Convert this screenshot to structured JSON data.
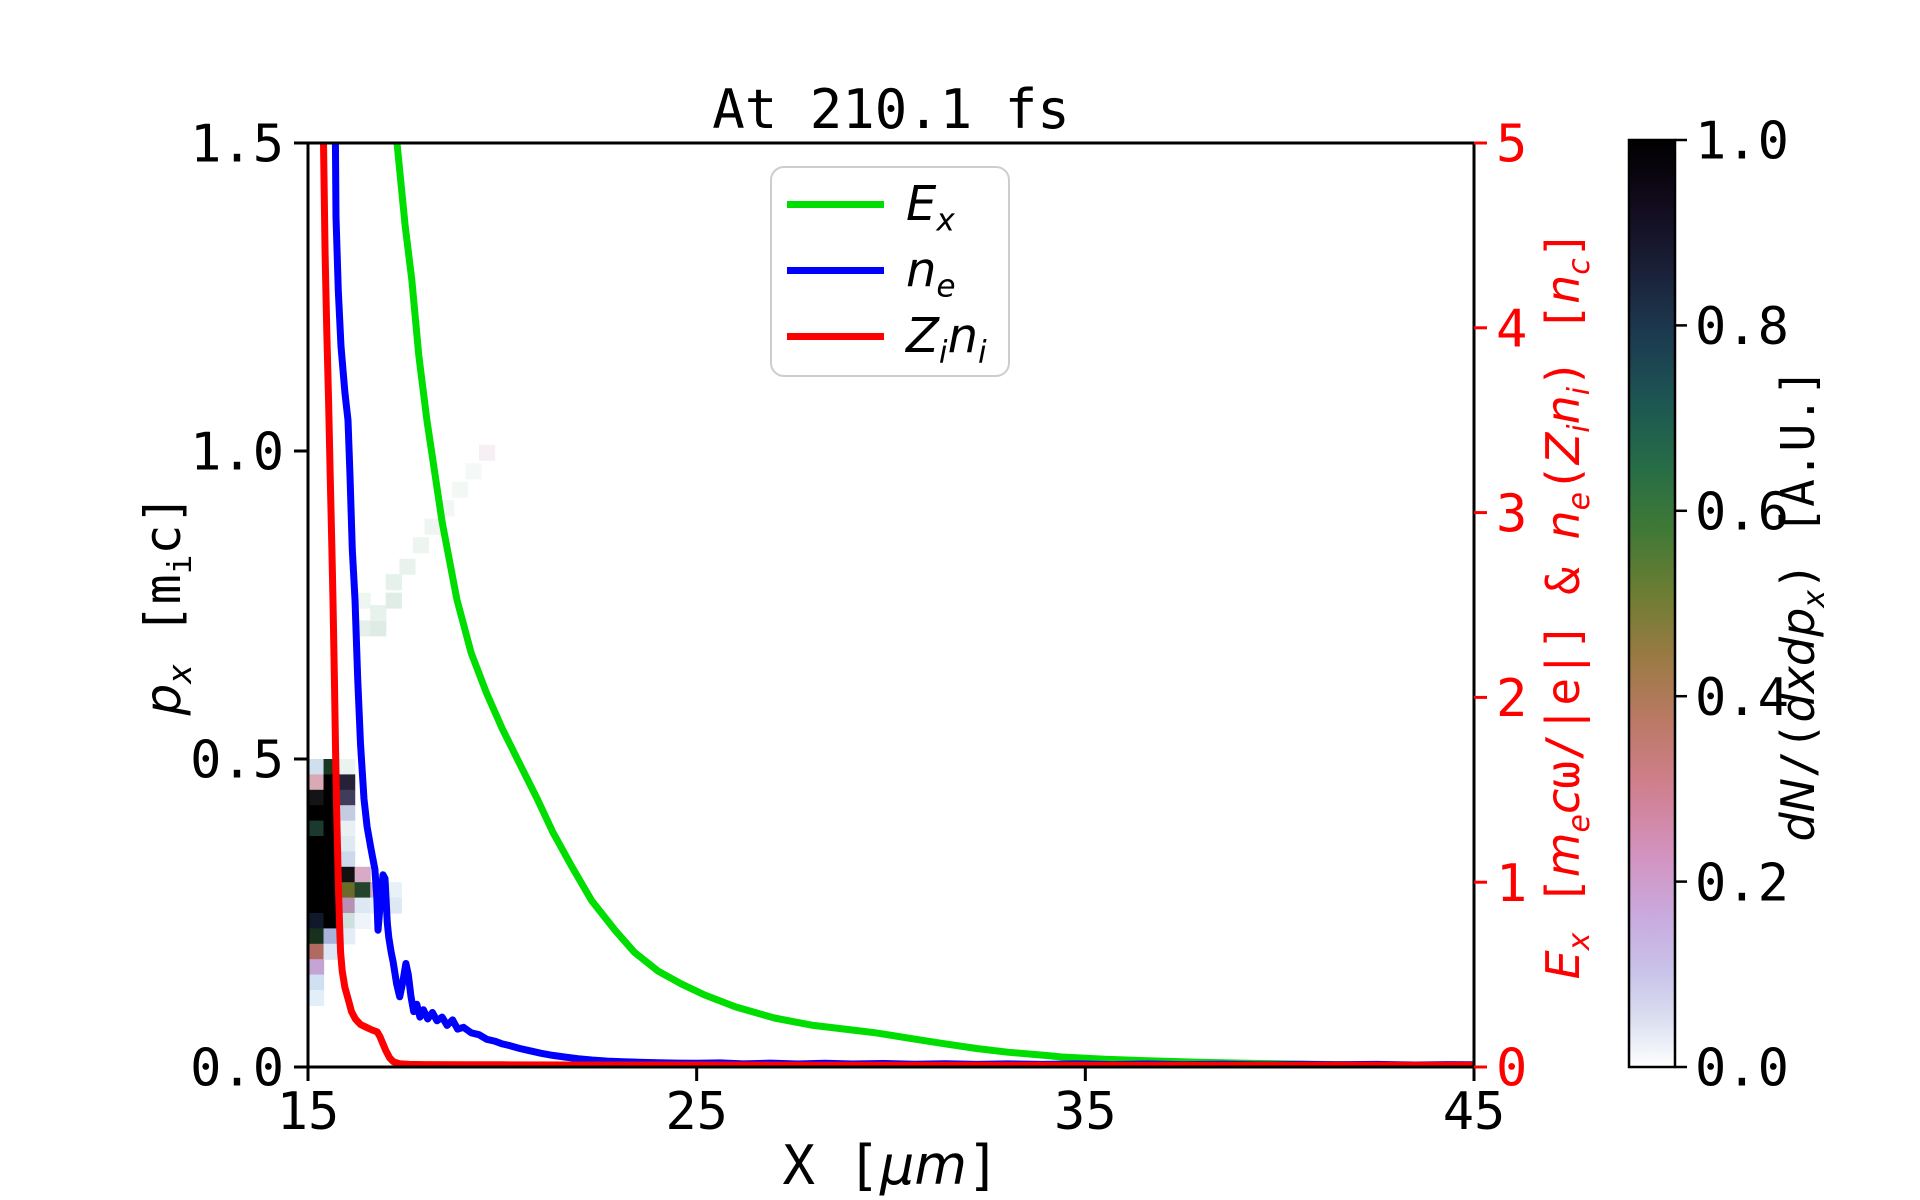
{
  "figure": {
    "background": "#ffffff"
  },
  "chart_data": {
    "type": "line",
    "title": "At 210.1 fs",
    "axes": {
      "x": {
        "label_html": "X [<i>μm</i>]",
        "range": [
          15,
          45
        ],
        "tick_values": [
          15,
          25,
          35,
          45
        ],
        "tick_labels": [
          "15",
          "25",
          "35",
          "45"
        ],
        "color": "#000000"
      },
      "y_left": {
        "label_html": "<i>p<sub>x</sub></i> [m<sub>i</sub>c]",
        "range": [
          0,
          1.5
        ],
        "tick_values": [
          0,
          0.5,
          1.0,
          1.5
        ],
        "tick_labels": [
          "0.0",
          "0.5",
          "1.0",
          "1.5"
        ],
        "color": "#000000"
      },
      "y_right": {
        "label_html": "<i>E<sub>x</sub></i> [<i>m<sub>e</sub>c</i>ω/|e|] &amp; <i>n<sub>e</sub></i>(<i>Z<sub>i</sub>n<sub>i</sub></i>) [<i>n<sub>c</sub></i>]",
        "range": [
          0,
          5
        ],
        "tick_values": [
          0,
          1,
          2,
          3,
          4,
          5
        ],
        "tick_labels": [
          "0",
          "1",
          "2",
          "3",
          "4",
          "5"
        ],
        "color": "#ff0000"
      }
    },
    "legend": {
      "entries": [
        {
          "name": "Ex",
          "label_html": "<i>E<sub>x</sub></i>",
          "color": "#00dd00"
        },
        {
          "name": "ne",
          "label_html": "<i>n<sub>e</sub></i>",
          "color": "#0000ff"
        },
        {
          "name": "Zini",
          "label_html": "<i>Z<sub>i</sub>n<sub>i</sub></i>",
          "color": "#ff0000"
        }
      ]
    },
    "series": [
      {
        "name": "Ex",
        "axis": "right",
        "color": "#00dd00",
        "width": 7,
        "points": [
          [
            16.9,
            6.2
          ],
          [
            17.29,
            5.0
          ],
          [
            17.5,
            4.55
          ],
          [
            17.67,
            4.26
          ],
          [
            17.85,
            3.85
          ],
          [
            18.06,
            3.5
          ],
          [
            18.45,
            2.95
          ],
          [
            18.83,
            2.53
          ],
          [
            19.2,
            2.24
          ],
          [
            19.6,
            2.02
          ],
          [
            20.0,
            1.83
          ],
          [
            20.4,
            1.66
          ],
          [
            20.9,
            1.45
          ],
          [
            21.3,
            1.27
          ],
          [
            21.8,
            1.08
          ],
          [
            22.3,
            0.9
          ],
          [
            22.9,
            0.74
          ],
          [
            23.4,
            0.62
          ],
          [
            24.0,
            0.52
          ],
          [
            24.6,
            0.45
          ],
          [
            25.2,
            0.39
          ],
          [
            26.0,
            0.325
          ],
          [
            27.0,
            0.265
          ],
          [
            28.0,
            0.225
          ],
          [
            29.0,
            0.2
          ],
          [
            29.6,
            0.185
          ],
          [
            30.5,
            0.155
          ],
          [
            31.3,
            0.128
          ],
          [
            32.2,
            0.1
          ],
          [
            33.0,
            0.08
          ],
          [
            34.0,
            0.062
          ],
          [
            34.4,
            0.054
          ],
          [
            35.5,
            0.042
          ],
          [
            36.7,
            0.033
          ],
          [
            38.0,
            0.025
          ],
          [
            39.5,
            0.019
          ],
          [
            41.0,
            0.014
          ],
          [
            42.5,
            0.011
          ],
          [
            44.0,
            0.009
          ],
          [
            45.0,
            0.008
          ]
        ]
      },
      {
        "name": "ne",
        "axis": "right",
        "color": "#0000ff",
        "width": 7,
        "points": [
          [
            15.66,
            6.2
          ],
          [
            15.72,
            4.6
          ],
          [
            15.78,
            4.2
          ],
          [
            15.85,
            3.9
          ],
          [
            15.95,
            3.65
          ],
          [
            16.03,
            3.5
          ],
          [
            16.08,
            3.2
          ],
          [
            16.14,
            2.8
          ],
          [
            16.21,
            2.53
          ],
          [
            16.28,
            2.1
          ],
          [
            16.35,
            1.75
          ],
          [
            16.44,
            1.45
          ],
          [
            16.52,
            1.3
          ],
          [
            16.62,
            1.18
          ],
          [
            16.72,
            1.07
          ],
          [
            16.77,
            0.92
          ],
          [
            16.8,
            0.74
          ],
          [
            16.85,
            0.86
          ],
          [
            16.93,
            1.04
          ],
          [
            16.98,
            1.02
          ],
          [
            17.04,
            0.78
          ],
          [
            17.08,
            0.7
          ],
          [
            17.14,
            0.62
          ],
          [
            17.19,
            0.57
          ],
          [
            17.28,
            0.45
          ],
          [
            17.36,
            0.38
          ],
          [
            17.44,
            0.46
          ],
          [
            17.52,
            0.56
          ],
          [
            17.58,
            0.5
          ],
          [
            17.65,
            0.38
          ],
          [
            17.72,
            0.3
          ],
          [
            17.8,
            0.34
          ],
          [
            17.88,
            0.27
          ],
          [
            17.97,
            0.31
          ],
          [
            18.08,
            0.26
          ],
          [
            18.2,
            0.295
          ],
          [
            18.32,
            0.25
          ],
          [
            18.45,
            0.27
          ],
          [
            18.58,
            0.225
          ],
          [
            18.72,
            0.255
          ],
          [
            18.85,
            0.205
          ],
          [
            19.0,
            0.215
          ],
          [
            19.2,
            0.185
          ],
          [
            19.4,
            0.175
          ],
          [
            19.6,
            0.15
          ],
          [
            19.8,
            0.14
          ],
          [
            20.0,
            0.125
          ],
          [
            20.2,
            0.115
          ],
          [
            20.45,
            0.1
          ],
          [
            20.7,
            0.088
          ],
          [
            21.0,
            0.074
          ],
          [
            21.3,
            0.063
          ],
          [
            21.6,
            0.054
          ],
          [
            21.95,
            0.045
          ],
          [
            22.3,
            0.038
          ],
          [
            22.7,
            0.032
          ],
          [
            23.1,
            0.028
          ],
          [
            23.5,
            0.026
          ],
          [
            24.0,
            0.023
          ],
          [
            24.5,
            0.021
          ],
          [
            25.0,
            0.02
          ],
          [
            25.6,
            0.022
          ],
          [
            26.2,
            0.017
          ],
          [
            26.9,
            0.021
          ],
          [
            27.6,
            0.016
          ],
          [
            28.3,
            0.02
          ],
          [
            29.0,
            0.016
          ],
          [
            29.8,
            0.019
          ],
          [
            30.6,
            0.015
          ],
          [
            31.4,
            0.018
          ],
          [
            32.2,
            0.014
          ],
          [
            33.0,
            0.017
          ],
          [
            33.9,
            0.014
          ],
          [
            34.8,
            0.017
          ],
          [
            35.7,
            0.013
          ],
          [
            36.6,
            0.016
          ],
          [
            37.5,
            0.013
          ],
          [
            38.5,
            0.015
          ],
          [
            39.5,
            0.012
          ],
          [
            40.5,
            0.014
          ],
          [
            41.5,
            0.012
          ],
          [
            42.5,
            0.014
          ],
          [
            43.5,
            0.011
          ],
          [
            44.3,
            0.013
          ],
          [
            45.0,
            0.012
          ]
        ]
      },
      {
        "name": "Zini",
        "axis": "right",
        "color": "#ff0000",
        "width": 7,
        "points": [
          [
            15.37,
            6.2
          ],
          [
            15.4,
            5.0
          ],
          [
            15.44,
            4.4
          ],
          [
            15.48,
            4.0
          ],
          [
            15.53,
            3.6
          ],
          [
            15.57,
            3.2
          ],
          [
            15.61,
            2.85
          ],
          [
            15.64,
            2.55
          ],
          [
            15.68,
            2.1
          ],
          [
            15.71,
            1.7
          ],
          [
            15.74,
            1.35
          ],
          [
            15.78,
            1.0
          ],
          [
            15.81,
            0.78
          ],
          [
            15.84,
            0.62
          ],
          [
            15.88,
            0.52
          ],
          [
            15.95,
            0.43
          ],
          [
            16.03,
            0.37
          ],
          [
            16.12,
            0.3
          ],
          [
            16.22,
            0.26
          ],
          [
            16.35,
            0.23
          ],
          [
            16.5,
            0.215
          ],
          [
            16.65,
            0.2
          ],
          [
            16.78,
            0.19
          ],
          [
            16.85,
            0.165
          ],
          [
            16.92,
            0.13
          ],
          [
            17.0,
            0.09
          ],
          [
            17.1,
            0.05
          ],
          [
            17.2,
            0.028
          ],
          [
            17.35,
            0.018
          ],
          [
            17.6,
            0.014
          ],
          [
            18.0,
            0.013
          ],
          [
            19.0,
            0.012
          ],
          [
            20.0,
            0.012
          ],
          [
            22.0,
            0.011
          ],
          [
            25.0,
            0.011
          ],
          [
            28.0,
            0.01
          ],
          [
            32.0,
            0.01
          ],
          [
            36.0,
            0.01
          ],
          [
            40.0,
            0.01
          ],
          [
            45.0,
            0.01
          ]
        ]
      }
    ],
    "heatmap": {
      "units": "x in μm (left edge), p in m_i c (bottom edge)",
      "cell_w": 0.4,
      "cell_h": 0.025,
      "cells": [
        [
          15.0,
          0.475,
          "#cfdfee"
        ],
        [
          15.0,
          0.45,
          "#d9aab6"
        ],
        [
          15.0,
          0.425,
          "#141418"
        ],
        [
          15.0,
          0.4,
          "#000000"
        ],
        [
          15.0,
          0.375,
          "#1b3a2e"
        ],
        [
          15.0,
          0.35,
          "#000000"
        ],
        [
          15.0,
          0.325,
          "#000000"
        ],
        [
          15.0,
          0.3,
          "#000000"
        ],
        [
          15.0,
          0.275,
          "#000000"
        ],
        [
          15.0,
          0.25,
          "#000000"
        ],
        [
          15.0,
          0.225,
          "#10182c"
        ],
        [
          15.0,
          0.2,
          "#16321e"
        ],
        [
          15.0,
          0.175,
          "#b06a60"
        ],
        [
          15.0,
          0.15,
          "#c4a4d4"
        ],
        [
          15.0,
          0.125,
          "#cfe0f2"
        ],
        [
          15.0,
          0.1,
          "#e2eef8"
        ],
        [
          15.4,
          0.475,
          "#193822"
        ],
        [
          15.4,
          0.45,
          "#000000"
        ],
        [
          15.4,
          0.425,
          "#000000"
        ],
        [
          15.4,
          0.4,
          "#000000"
        ],
        [
          15.4,
          0.375,
          "#000000"
        ],
        [
          15.4,
          0.35,
          "#000000"
        ],
        [
          15.4,
          0.325,
          "#000000"
        ],
        [
          15.4,
          0.3,
          "#000000"
        ],
        [
          15.4,
          0.275,
          "#000000"
        ],
        [
          15.4,
          0.25,
          "#000000"
        ],
        [
          15.4,
          0.225,
          "#000000"
        ],
        [
          15.4,
          0.2,
          "#a8b2da"
        ],
        [
          15.4,
          0.175,
          "#dce6f4"
        ],
        [
          15.8,
          0.475,
          "#eaf3ef"
        ],
        [
          15.8,
          0.45,
          "#262038"
        ],
        [
          15.8,
          0.425,
          "#403c5c"
        ],
        [
          15.8,
          0.4,
          "#c4cce2"
        ],
        [
          15.8,
          0.375,
          "#e8f0f4"
        ],
        [
          15.8,
          0.35,
          "#dfe9f2"
        ],
        [
          15.8,
          0.325,
          "#cdd9ea"
        ],
        [
          15.8,
          0.3,
          "#111111"
        ],
        [
          15.8,
          0.275,
          "#6b6b2a"
        ],
        [
          15.8,
          0.25,
          "#b890b4"
        ],
        [
          15.8,
          0.225,
          "#cde0dc"
        ],
        [
          15.8,
          0.2,
          "#e4edf6"
        ],
        [
          16.2,
          0.3,
          "#d8aac6"
        ],
        [
          16.2,
          0.275,
          "#23432b"
        ],
        [
          16.2,
          0.25,
          "#dce8f2"
        ],
        [
          16.2,
          0.225,
          "#eef4f8"
        ],
        [
          16.2,
          0.7,
          "#e6f0ea"
        ],
        [
          16.2,
          0.745,
          "#eef6f1"
        ],
        [
          16.6,
          0.275,
          "#d2aac8"
        ],
        [
          16.6,
          0.25,
          "#e6eef6"
        ],
        [
          16.6,
          0.7,
          "#dfece6"
        ],
        [
          16.6,
          0.725,
          "#e8f2ec"
        ],
        [
          17.0,
          0.275,
          "#e8f0f8"
        ],
        [
          17.0,
          0.25,
          "#dde8f4"
        ],
        [
          17.0,
          0.745,
          "#dfede6"
        ],
        [
          17.0,
          0.775,
          "#e5f1ea"
        ],
        [
          17.35,
          0.8,
          "#e9f3ee"
        ],
        [
          17.7,
          0.835,
          "#ecf5f0"
        ],
        [
          18.0,
          0.865,
          "#eff6f2"
        ],
        [
          18.35,
          0.895,
          "#f1f7f3"
        ],
        [
          18.7,
          0.925,
          "#f3f8f5"
        ],
        [
          19.05,
          0.955,
          "#f4f8f6"
        ],
        [
          19.4,
          0.985,
          "#f6f0f4"
        ]
      ]
    },
    "colorbar": {
      "label_html": "<i>dN</i>/(<i>dxdp<sub>x</sub></i>) [A.U.]",
      "tick_values": [
        1.0,
        0.8,
        0.6,
        0.4,
        0.2,
        0.0
      ],
      "tick_labels": [
        "1.0",
        "0.8",
        "0.6",
        "0.4",
        "0.2",
        "0.0"
      ],
      "colormap": "cubehelix_r",
      "gradient": [
        [
          0,
          "#000000"
        ],
        [
          7,
          "#120b1d"
        ],
        [
          14,
          "#1a2038"
        ],
        [
          21,
          "#1c3a50"
        ],
        [
          28,
          "#1d5553"
        ],
        [
          35,
          "#256c47"
        ],
        [
          42,
          "#3f7936"
        ],
        [
          49,
          "#6d7d33"
        ],
        [
          56,
          "#9b7a44"
        ],
        [
          63,
          "#bc7a67"
        ],
        [
          70,
          "#d08090"
        ],
        [
          77,
          "#d392bf"
        ],
        [
          84,
          "#c9abdf"
        ],
        [
          90,
          "#c9c4ea"
        ],
        [
          95,
          "#dcdff0"
        ],
        [
          100,
          "#ffffff"
        ]
      ]
    }
  }
}
